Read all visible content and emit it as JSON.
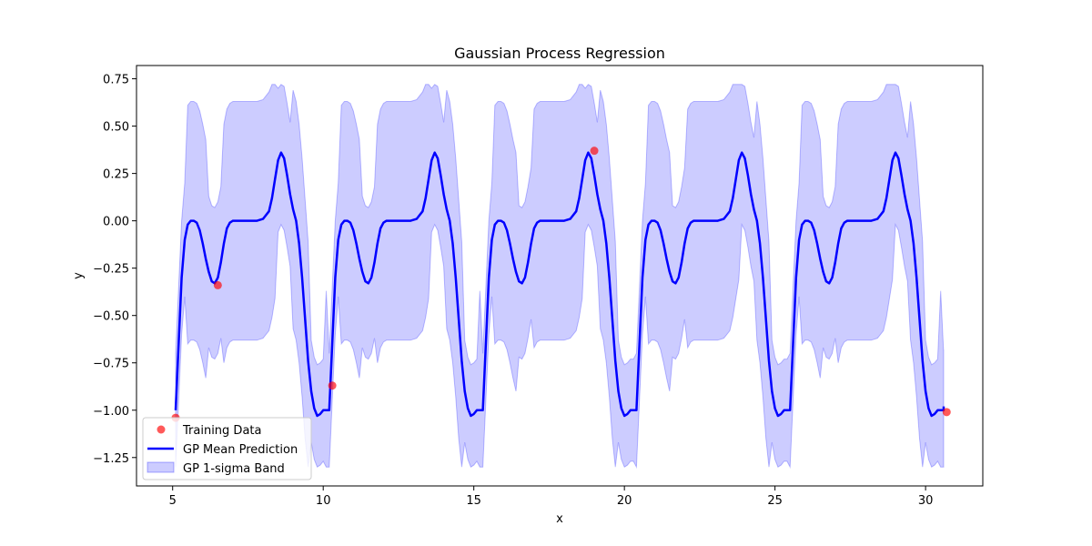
{
  "chart_data": {
    "type": "line",
    "title": "Gaussian Process Regression",
    "xlabel": "x",
    "ylabel": "y",
    "xlim": [
      3.8,
      31.9
    ],
    "ylim": [
      -1.4,
      0.82
    ],
    "xticks": [
      5,
      10,
      15,
      20,
      25,
      30
    ],
    "yticks": [
      -1.25,
      -1.0,
      -0.75,
      -0.5,
      -0.25,
      0.0,
      0.25,
      0.5,
      0.75
    ],
    "ytick_labels": [
      "−1.25",
      "−1.00",
      "−0.75",
      "−0.50",
      "−0.25",
      "0.00",
      "0.25",
      "0.50",
      "0.75"
    ],
    "grid": false,
    "legend_position": "bottom-left",
    "series": [
      {
        "name": "Training Data",
        "kind": "scatter",
        "color": "#ff0000",
        "x": [
          5.1,
          6.5,
          10.3,
          19.0,
          30.7
        ],
        "y": [
          -1.04,
          -0.34,
          -0.87,
          0.37,
          -1.01
        ]
      },
      {
        "name": "GP Mean Prediction",
        "kind": "line",
        "color": "#0000ff",
        "period": 5.1,
        "x": [
          5.1,
          5.2,
          5.3,
          5.4,
          5.5,
          5.6,
          5.7,
          5.8,
          5.9,
          6.0,
          6.1,
          6.2,
          6.3,
          6.4,
          6.5,
          6.6,
          6.7,
          6.8,
          6.9,
          7.0,
          7.1,
          7.2,
          7.4,
          7.6,
          7.8,
          8.0,
          8.2,
          8.3,
          8.4,
          8.5,
          8.6,
          8.7,
          8.8,
          8.9,
          9.0,
          9.1,
          9.2,
          9.3,
          9.4,
          9.5,
          9.6,
          9.7,
          9.8,
          9.9,
          10.0,
          10.1,
          10.2
        ],
        "y": [
          -1.0,
          -0.65,
          -0.3,
          -0.1,
          -0.02,
          0.0,
          0.0,
          -0.01,
          -0.05,
          -0.12,
          -0.2,
          -0.27,
          -0.32,
          -0.33,
          -0.3,
          -0.22,
          -0.12,
          -0.04,
          -0.01,
          0.0,
          0.0,
          0.0,
          0.0,
          0.0,
          0.0,
          0.01,
          0.05,
          0.12,
          0.22,
          0.32,
          0.36,
          0.33,
          0.24,
          0.14,
          0.06,
          0.0,
          -0.12,
          -0.3,
          -0.52,
          -0.74,
          -0.9,
          -0.99,
          -1.03,
          -1.02,
          -1.0,
          -1.0,
          -1.0
        ],
        "periodic_repeats": 5,
        "x_end": 30.6,
        "y_end": -0.98
      },
      {
        "name": "GP 1-sigma Band",
        "kind": "band",
        "color": "#0000ff",
        "opacity": 0.2,
        "half_width_flat": 0.63,
        "half_width_near_data": 0.3,
        "peak_upper": 0.72,
        "peak_lower": -1.3
      }
    ]
  }
}
